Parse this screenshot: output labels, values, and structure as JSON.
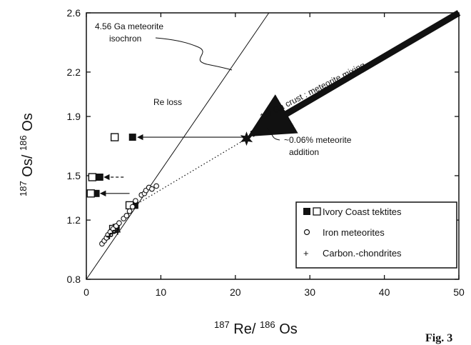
{
  "chart_data": {
    "type": "scatter",
    "xlim": [
      0,
      50
    ],
    "ylim": [
      0.8,
      2.6
    ],
    "x_ticks": [
      "0",
      "10",
      "20",
      "30",
      "40",
      "50"
    ],
    "y_ticks": [
      "0.8",
      "1.2",
      "1.5",
      "1.9",
      "2.2",
      "2.6"
    ],
    "xlabel": {
      "sup1": "187",
      "main1": "Re/",
      "sup2": "186",
      "main2": "Os"
    },
    "ylabel": {
      "sup1": "187",
      "main1": "Os/",
      "sup2": "186",
      "main2": "Os"
    },
    "grid": false,
    "legend_position": "bottom-right",
    "legend": {
      "tektites": "Ivory Coast tektites",
      "iron": "Iron meteorites",
      "carbon": "Carbon.-chondrites"
    },
    "series": [
      {
        "name": "Ivory Coast tektites",
        "marker": "square-filled",
        "points": [
          [
            6.2,
            1.76
          ],
          [
            1.8,
            1.49
          ],
          [
            1.3,
            1.38
          ],
          [
            6.5,
            1.3
          ],
          [
            4.0,
            1.15
          ]
        ]
      },
      {
        "name": "Ivory Coast tektites",
        "marker": "square-open",
        "points": [
          [
            3.8,
            1.76
          ],
          [
            0.8,
            1.49
          ],
          [
            0.6,
            1.38
          ],
          [
            5.8,
            1.3
          ],
          [
            3.6,
            1.14
          ]
        ]
      },
      {
        "name": "Iron meteorites",
        "marker": "circle-open",
        "points": [
          [
            2.1,
            1.04
          ],
          [
            2.4,
            1.06
          ],
          [
            2.7,
            1.08
          ],
          [
            2.9,
            1.1
          ],
          [
            3.2,
            1.12
          ],
          [
            3.6,
            1.14
          ],
          [
            4.0,
            1.16
          ],
          [
            4.4,
            1.18
          ],
          [
            5.0,
            1.21
          ],
          [
            5.4,
            1.23
          ],
          [
            5.8,
            1.26
          ],
          [
            6.2,
            1.29
          ],
          [
            6.6,
            1.33
          ],
          [
            7.4,
            1.37
          ],
          [
            7.8,
            1.38
          ],
          [
            8.0,
            1.4
          ],
          [
            8.4,
            1.42
          ],
          [
            8.8,
            1.41
          ],
          [
            9.4,
            1.43
          ]
        ]
      },
      {
        "name": "Carbon.-chondrites",
        "marker": "plus",
        "points": [
          [
            3.1,
            1.09
          ],
          [
            3.5,
            1.11
          ],
          [
            3.9,
            1.13
          ],
          [
            4.2,
            1.12
          ]
        ]
      }
    ],
    "isochron": {
      "label1": "4.56 Ga meteorite",
      "label2": "isochron",
      "from": [
        0,
        0.8
      ],
      "to": [
        24.5,
        2.6
      ]
    },
    "mixing": {
      "label": "1.9 Ga crust : meteorite mixing",
      "star": [
        21.5,
        1.75
      ],
      "from": [
        50,
        2.6
      ],
      "to": [
        22.2,
        1.78
      ]
    },
    "mixing_dotted": [
      [
        6.5,
        1.3
      ],
      [
        21.5,
        1.75
      ]
    ],
    "re_loss": {
      "label": "Re loss",
      "arrows": [
        {
          "from": [
            21.2,
            1.76
          ],
          "to": [
            6.9,
            1.76
          ],
          "style": "solid"
        },
        {
          "from": [
            5.0,
            1.49
          ],
          "to": [
            2.4,
            1.49
          ],
          "style": "dashed"
        },
        {
          "from": [
            5.8,
            1.38
          ],
          "to": [
            1.9,
            1.38
          ],
          "style": "solid"
        }
      ]
    },
    "addition": {
      "label1": "~0.06% meteorite",
      "label2": "addition"
    },
    "fig_label": "Fig. 3"
  }
}
